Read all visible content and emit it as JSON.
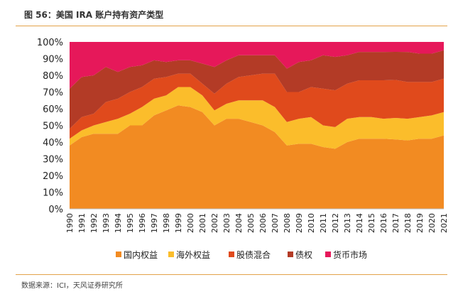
{
  "figure": {
    "title": "图 56：美国 IRA 账户持有资产类型",
    "source": "数据来源：ICI，天风证券研究所"
  },
  "chart_data": {
    "type": "area",
    "stacked": true,
    "xlabel": "",
    "ylabel": "",
    "ylim": [
      0,
      100
    ],
    "y_ticks": [
      "0%",
      "10%",
      "20%",
      "30%",
      "40%",
      "50%",
      "60%",
      "70%",
      "80%",
      "90%",
      "100%"
    ],
    "legend_position": "bottom",
    "x": [
      "1990",
      "1991",
      "1992",
      "1993",
      "1994",
      "1995",
      "1996",
      "1997",
      "1998",
      "1999",
      "2000",
      "2001",
      "2002",
      "2003",
      "2004",
      "2005",
      "2006",
      "2007",
      "2008",
      "2009",
      "2010",
      "2011",
      "2012",
      "2013",
      "2014",
      "2015",
      "2016",
      "2017",
      "2018",
      "2019",
      "2020",
      "2021"
    ],
    "series": [
      {
        "name": "国内权益",
        "color": "#f28b22",
        "values": [
          38,
          43,
          45,
          45,
          45,
          50,
          50,
          56,
          59,
          62,
          61,
          58,
          50,
          54,
          54,
          52,
          50,
          46,
          38,
          39,
          39,
          37,
          36,
          40,
          42,
          42,
          42,
          42,
          41,
          42,
          42,
          44
        ]
      },
      {
        "name": "海外权益",
        "color": "#fbbd2b",
        "values": [
          4,
          4,
          5,
          7,
          9,
          7,
          11,
          10,
          9,
          11,
          12,
          10,
          9,
          9,
          11,
          13,
          15,
          15,
          14,
          15,
          16,
          13,
          13,
          14,
          13,
          13,
          12,
          13,
          13,
          13,
          14,
          14
        ]
      },
      {
        "name": "股债混合",
        "color": "#e04a1c",
        "values": [
          6,
          8,
          7,
          12,
          12,
          13,
          12,
          12,
          11,
          8,
          8,
          7,
          10,
          12,
          14,
          15,
          16,
          20,
          18,
          16,
          18,
          22,
          22,
          21,
          22,
          22,
          23,
          23,
          22,
          21,
          20,
          20
        ]
      },
      {
        "name": "债权",
        "color": "#b33b26",
        "values": [
          24,
          24,
          23,
          21,
          16,
          15,
          13,
          11,
          9,
          8,
          8,
          12,
          16,
          14,
          13,
          12,
          11,
          11,
          14,
          18,
          16,
          20,
          20,
          17,
          17,
          17,
          17,
          17,
          18,
          17,
          17,
          17
        ]
      },
      {
        "name": "货币市场",
        "color": "#e6185a",
        "values": [
          28,
          21,
          20,
          15,
          18,
          15,
          14,
          11,
          12,
          11,
          11,
          13,
          15,
          11,
          8,
          8,
          8,
          8,
          16,
          12,
          11,
          8,
          9,
          8,
          6,
          6,
          6,
          6,
          6,
          7,
          7,
          5
        ]
      }
    ]
  }
}
